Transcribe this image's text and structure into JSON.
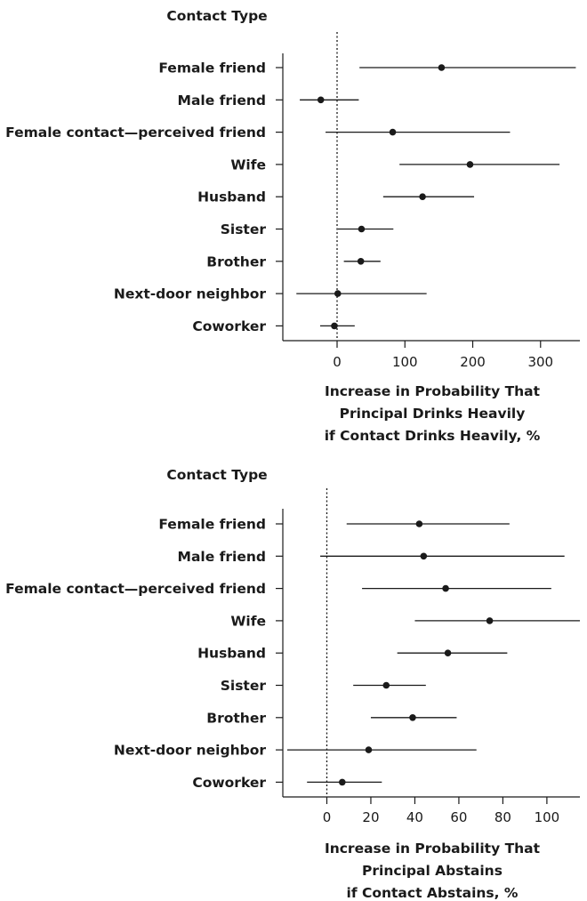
{
  "chart_data": [
    {
      "type": "scatter",
      "subtype": "forest-plot",
      "category_title": "Contact Type",
      "categories": [
        "Female friend",
        "Male friend",
        "Female contact—perceived friend",
        "Wife",
        "Husband",
        "Sister",
        "Brother",
        "Next-door neighbor",
        "Coworker"
      ],
      "values": [
        154,
        -24,
        82,
        196,
        126,
        36,
        35,
        1,
        -4
      ],
      "ci_low": [
        33,
        -55,
        -17,
        92,
        68,
        1,
        10,
        -60,
        -25
      ],
      "ci_high": [
        352,
        32,
        255,
        328,
        202,
        83,
        64,
        132,
        26
      ],
      "xlim": [
        -80,
        358
      ],
      "xticks": [
        "0",
        "100",
        "200",
        "300"
      ],
      "reference_line": 0,
      "xlabel_lines": [
        "Increase in Probability That",
        "Principal Drinks Heavily",
        "if Contact Drinks Heavily, %"
      ]
    },
    {
      "type": "scatter",
      "subtype": "forest-plot",
      "category_title": "Contact Type",
      "categories": [
        "Female friend",
        "Male friend",
        "Female contact—perceived friend",
        "Wife",
        "Husband",
        "Sister",
        "Brother",
        "Next-door neighbor",
        "Coworker"
      ],
      "values": [
        42,
        44,
        54,
        74,
        55,
        27,
        39,
        19,
        7
      ],
      "ci_low": [
        9,
        -3,
        16,
        40,
        32,
        12,
        20,
        -18,
        -9
      ],
      "ci_high": [
        83,
        108,
        102,
        115,
        82,
        45,
        59,
        68,
        25
      ],
      "xlim": [
        -20,
        115
      ],
      "xticks": [
        "0",
        "20",
        "40",
        "60",
        "80",
        "100"
      ],
      "reference_line": 0,
      "xlabel_lines": [
        "Increase in Probability That",
        "Principal Abstains",
        "if Contact Abstains, %"
      ]
    }
  ]
}
